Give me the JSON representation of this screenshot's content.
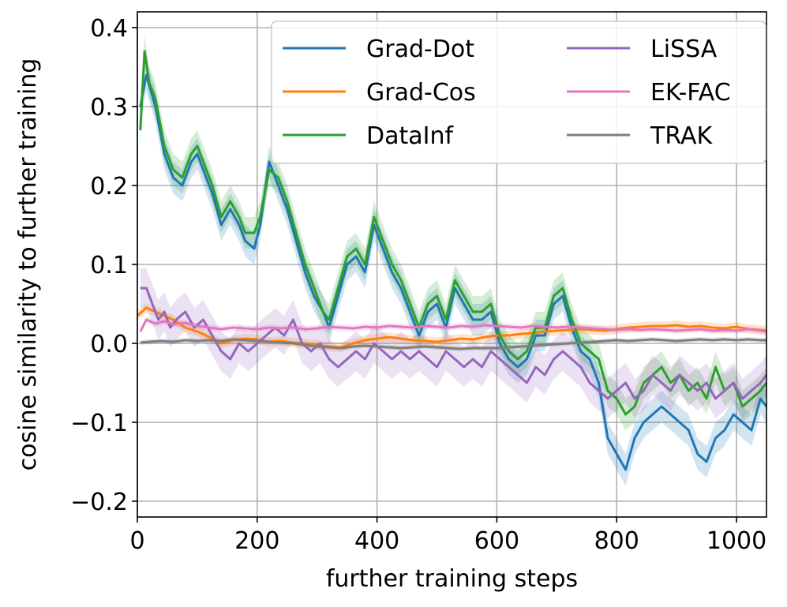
{
  "chart_data": {
    "type": "line",
    "title": "",
    "xlabel": "further training steps",
    "ylabel": "cosine similarity to further training",
    "xlim": [
      0,
      1050
    ],
    "ylim": [
      -0.22,
      0.42
    ],
    "xticks": [
      0,
      200,
      400,
      600,
      800,
      1000
    ],
    "xtick_labels": [
      "0",
      "200",
      "400",
      "600",
      "800",
      "1000"
    ],
    "yticks": [
      -0.2,
      -0.1,
      0.0,
      0.1,
      0.2,
      0.3,
      0.4
    ],
    "ytick_labels": [
      "−0.2",
      "−0.1",
      "0.0",
      "0.1",
      "0.2",
      "0.3",
      "0.4"
    ],
    "grid": true,
    "legend_position": "top-right",
    "legend_columns": 2,
    "band_note": "each series drawn with a shaded uncertainty band",
    "series": [
      {
        "name": "Grad-Dot",
        "color": "#1f77b4",
        "band": 0.02,
        "x": [
          5,
          15,
          30,
          45,
          60,
          75,
          90,
          100,
          110,
          125,
          140,
          155,
          170,
          180,
          195,
          205,
          220,
          235,
          250,
          265,
          280,
          295,
          310,
          320,
          335,
          350,
          365,
          380,
          395,
          410,
          425,
          440,
          455,
          470,
          485,
          500,
          515,
          530,
          545,
          560,
          575,
          590,
          605,
          620,
          635,
          650,
          665,
          680,
          695,
          710,
          725,
          740,
          755,
          770,
          785,
          800,
          815,
          830,
          845,
          860,
          875,
          890,
          905,
          920,
          935,
          950,
          965,
          980,
          995,
          1010,
          1025,
          1040,
          1050
        ],
        "y": [
          0.3,
          0.34,
          0.3,
          0.24,
          0.21,
          0.2,
          0.23,
          0.24,
          0.22,
          0.19,
          0.15,
          0.17,
          0.15,
          0.13,
          0.12,
          0.15,
          0.23,
          0.2,
          0.17,
          0.13,
          0.09,
          0.06,
          0.04,
          0.02,
          0.06,
          0.1,
          0.11,
          0.09,
          0.15,
          0.12,
          0.09,
          0.07,
          0.04,
          0.01,
          0.04,
          0.05,
          0.02,
          0.07,
          0.05,
          0.03,
          0.03,
          0.04,
          0.0,
          -0.02,
          -0.03,
          -0.02,
          0.01,
          0.01,
          0.05,
          0.06,
          0.02,
          -0.01,
          -0.02,
          -0.05,
          -0.12,
          -0.14,
          -0.16,
          -0.12,
          -0.1,
          -0.09,
          -0.08,
          -0.09,
          -0.1,
          -0.11,
          -0.14,
          -0.15,
          -0.12,
          -0.11,
          -0.09,
          -0.1,
          -0.11,
          -0.07,
          -0.08
        ]
      },
      {
        "name": "Grad-Cos",
        "color": "#ff7f0e",
        "band": 0.006,
        "x": [
          0,
          15,
          30,
          45,
          60,
          80,
          100,
          120,
          140,
          160,
          180,
          200,
          220,
          240,
          260,
          280,
          300,
          320,
          340,
          360,
          380,
          400,
          420,
          440,
          460,
          480,
          500,
          520,
          540,
          560,
          580,
          600,
          620,
          640,
          660,
          680,
          700,
          720,
          740,
          760,
          780,
          800,
          820,
          840,
          860,
          880,
          900,
          920,
          940,
          960,
          980,
          1000,
          1020,
          1040,
          1050
        ],
        "y": [
          0.035,
          0.045,
          0.04,
          0.035,
          0.03,
          0.02,
          0.015,
          0.008,
          0.0,
          0.004,
          0.006,
          0.005,
          0.002,
          0.003,
          0.001,
          0.0,
          -0.002,
          -0.004,
          -0.005,
          0.0,
          0.004,
          0.006,
          0.008,
          0.006,
          0.004,
          0.003,
          0.002,
          0.004,
          0.006,
          0.005,
          0.008,
          0.01,
          0.01,
          0.012,
          0.013,
          0.015,
          0.016,
          0.017,
          0.018,
          0.017,
          0.016,
          0.018,
          0.02,
          0.021,
          0.022,
          0.022,
          0.023,
          0.021,
          0.022,
          0.02,
          0.019,
          0.021,
          0.018,
          0.017,
          0.016
        ]
      },
      {
        "name": "DataInf",
        "color": "#2ca02c",
        "band": 0.02,
        "x": [
          5,
          12,
          20,
          30,
          45,
          60,
          75,
          90,
          100,
          110,
          125,
          140,
          155,
          170,
          180,
          195,
          205,
          220,
          235,
          250,
          265,
          280,
          295,
          310,
          320,
          335,
          350,
          365,
          380,
          395,
          410,
          425,
          440,
          455,
          470,
          485,
          500,
          515,
          530,
          545,
          560,
          575,
          590,
          605,
          620,
          635,
          650,
          665,
          680,
          695,
          710,
          725,
          740,
          755,
          770,
          785,
          800,
          815,
          830,
          845,
          860,
          875,
          890,
          905,
          920,
          935,
          950,
          965,
          980,
          995,
          1010,
          1025,
          1040,
          1050
        ],
        "y": [
          0.27,
          0.37,
          0.33,
          0.31,
          0.25,
          0.22,
          0.21,
          0.24,
          0.25,
          0.23,
          0.2,
          0.16,
          0.18,
          0.16,
          0.14,
          0.14,
          0.16,
          0.22,
          0.21,
          0.18,
          0.14,
          0.1,
          0.07,
          0.04,
          0.03,
          0.07,
          0.11,
          0.12,
          0.1,
          0.16,
          0.13,
          0.1,
          0.08,
          0.05,
          0.02,
          0.05,
          0.06,
          0.03,
          0.08,
          0.06,
          0.04,
          0.04,
          0.05,
          0.01,
          -0.01,
          -0.02,
          -0.01,
          0.02,
          0.02,
          0.06,
          0.07,
          0.03,
          0.0,
          -0.01,
          -0.02,
          -0.06,
          -0.07,
          -0.09,
          -0.08,
          -0.05,
          -0.04,
          -0.03,
          -0.05,
          -0.04,
          -0.06,
          -0.05,
          -0.07,
          -0.03,
          -0.06,
          -0.05,
          -0.08,
          -0.07,
          -0.06,
          -0.05
        ]
      },
      {
        "name": "LiSSA",
        "color": "#9467bd",
        "band": 0.025,
        "x": [
          5,
          15,
          25,
          35,
          45,
          55,
          65,
          80,
          95,
          110,
          125,
          140,
          155,
          170,
          185,
          200,
          215,
          230,
          245,
          260,
          275,
          290,
          305,
          320,
          335,
          350,
          365,
          380,
          395,
          410,
          425,
          440,
          455,
          470,
          485,
          500,
          515,
          530,
          545,
          560,
          575,
          590,
          605,
          620,
          635,
          650,
          665,
          680,
          695,
          710,
          725,
          740,
          755,
          770,
          785,
          800,
          815,
          830,
          845,
          860,
          875,
          890,
          905,
          920,
          935,
          950,
          965,
          980,
          995,
          1010,
          1025,
          1040,
          1050
        ],
        "y": [
          0.07,
          0.07,
          0.05,
          0.03,
          0.04,
          0.02,
          0.03,
          0.04,
          0.02,
          0.03,
          0.01,
          -0.01,
          -0.02,
          0.0,
          -0.01,
          0.0,
          0.01,
          0.02,
          0.01,
          0.03,
          0.0,
          -0.01,
          0.0,
          -0.02,
          -0.03,
          -0.02,
          -0.01,
          -0.02,
          0.0,
          -0.01,
          -0.02,
          -0.01,
          -0.02,
          -0.01,
          -0.02,
          -0.03,
          -0.01,
          -0.02,
          -0.03,
          -0.02,
          -0.03,
          -0.01,
          -0.02,
          -0.03,
          -0.04,
          -0.05,
          -0.03,
          -0.04,
          -0.02,
          -0.01,
          -0.02,
          -0.03,
          -0.05,
          -0.06,
          -0.07,
          -0.06,
          -0.05,
          -0.07,
          -0.06,
          -0.04,
          -0.05,
          -0.06,
          -0.04,
          -0.05,
          -0.06,
          -0.05,
          -0.07,
          -0.06,
          -0.05,
          -0.07,
          -0.06,
          -0.05,
          -0.04
        ]
      },
      {
        "name": "EK-FAC",
        "color": "#e377c2",
        "band": 0.004,
        "x": [
          5,
          15,
          30,
          45,
          60,
          80,
          100,
          120,
          140,
          160,
          180,
          200,
          220,
          240,
          260,
          280,
          300,
          320,
          340,
          360,
          380,
          400,
          420,
          440,
          460,
          480,
          500,
          520,
          540,
          560,
          580,
          600,
          620,
          640,
          660,
          680,
          700,
          720,
          740,
          760,
          780,
          800,
          820,
          840,
          860,
          880,
          900,
          920,
          940,
          960,
          980,
          1000,
          1020,
          1040,
          1050
        ],
        "y": [
          0.015,
          0.03,
          0.025,
          0.028,
          0.024,
          0.026,
          0.022,
          0.02,
          0.018,
          0.02,
          0.019,
          0.018,
          0.02,
          0.019,
          0.02,
          0.018,
          0.019,
          0.021,
          0.02,
          0.019,
          0.021,
          0.02,
          0.022,
          0.021,
          0.02,
          0.022,
          0.021,
          0.02,
          0.022,
          0.021,
          0.023,
          0.022,
          0.021,
          0.02,
          0.022,
          0.021,
          0.02,
          0.021,
          0.02,
          0.019,
          0.018,
          0.017,
          0.018,
          0.017,
          0.018,
          0.017,
          0.016,
          0.017,
          0.018,
          0.016,
          0.017,
          0.016,
          0.018,
          0.016,
          0.015
        ]
      },
      {
        "name": "TRAK",
        "color": "#7f7f7f",
        "band": 0.003,
        "x": [
          5,
          20,
          40,
          60,
          80,
          100,
          120,
          140,
          160,
          180,
          200,
          220,
          240,
          260,
          280,
          300,
          320,
          340,
          360,
          380,
          400,
          420,
          440,
          460,
          480,
          500,
          520,
          540,
          560,
          580,
          600,
          620,
          640,
          660,
          680,
          700,
          720,
          740,
          760,
          780,
          800,
          820,
          840,
          860,
          880,
          900,
          920,
          940,
          960,
          980,
          1000,
          1020,
          1040,
          1050
        ],
        "y": [
          0.001,
          0.002,
          0.003,
          0.002,
          0.004,
          0.003,
          0.004,
          0.003,
          0.005,
          0.004,
          0.003,
          0.002,
          0.001,
          0.0,
          -0.002,
          -0.004,
          -0.005,
          -0.006,
          -0.004,
          -0.003,
          -0.004,
          -0.005,
          -0.006,
          -0.005,
          -0.004,
          -0.005,
          -0.006,
          -0.007,
          -0.006,
          -0.006,
          -0.006,
          -0.005,
          -0.004,
          -0.003,
          -0.002,
          -0.001,
          0.0,
          0.001,
          0.002,
          0.003,
          0.004,
          0.003,
          0.004,
          0.005,
          0.004,
          0.003,
          0.004,
          0.005,
          0.004,
          0.005,
          0.004,
          0.005,
          0.004,
          0.004
        ]
      }
    ]
  }
}
